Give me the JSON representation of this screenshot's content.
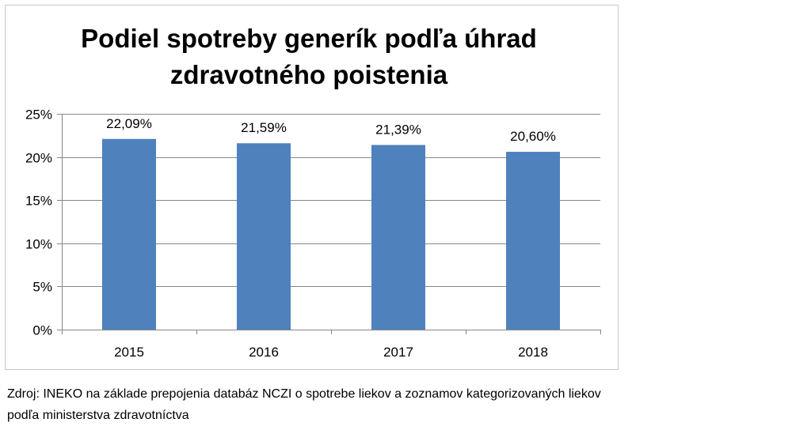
{
  "chart_data": {
    "type": "bar",
    "title_lines": [
      "Podiel spotreby generík podľa úhrad",
      "zdravotného poistenia"
    ],
    "categories": [
      "2015",
      "2016",
      "2017",
      "2018"
    ],
    "values": [
      22.09,
      21.59,
      21.39,
      20.6
    ],
    "data_labels": [
      "22,09%",
      "21,59%",
      "21,39%",
      "20,60%"
    ],
    "y_ticks": [
      {
        "value": 0,
        "label": "0%"
      },
      {
        "value": 5,
        "label": "5%"
      },
      {
        "value": 10,
        "label": "10%"
      },
      {
        "value": 15,
        "label": "15%"
      },
      {
        "value": 20,
        "label": "20%"
      },
      {
        "value": 25,
        "label": "25%"
      }
    ],
    "ylim": [
      0,
      25
    ],
    "grid": true,
    "legend": "none",
    "bar_color": "#4f81bd",
    "grid_color": "#878787"
  },
  "source": {
    "line1": "Zdroj: INEKO na základe prepojenia databáz NCZI o spotrebe liekov a zoznamov kategorizovaných liekov",
    "line2": "podľa ministerstva zdravotníctva"
  }
}
